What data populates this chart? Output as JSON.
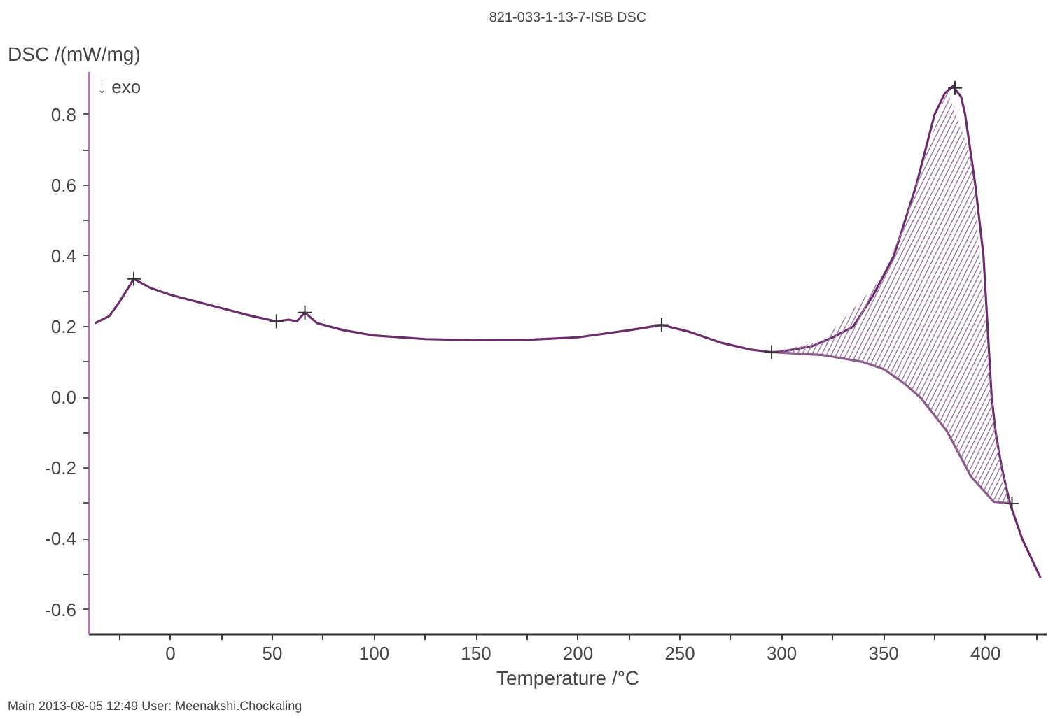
{
  "chart_data": {
    "type": "line",
    "title": "821-033-1-13-7-ISB DSC",
    "xlabel": "Temperature /°C",
    "ylabel": "DSC /(mW/mg)",
    "annotations": [
      "↓ exo",
      "Main   2013-08-05 12:49   User: Meenakshi.Chockaling"
    ],
    "xlim": [
      -40,
      430
    ],
    "ylim": [
      -0.67,
      0.92
    ],
    "xticks": [
      {
        "value": -25,
        "label": null
      },
      0,
      {
        "value": 25,
        "label": null
      },
      50,
      {
        "value": 75,
        "label": null
      },
      100,
      {
        "value": 125,
        "label": null
      },
      150,
      {
        "value": 175,
        "label": null
      },
      200,
      {
        "value": 225,
        "label": null
      },
      250,
      {
        "value": 275,
        "label": null
      },
      300,
      {
        "value": 325,
        "label": null
      },
      350,
      {
        "value": 375,
        "label": null
      },
      400,
      {
        "value": 425,
        "label": null
      }
    ],
    "yticks": [
      {
        "value": -0.6,
        "label": "-0.6"
      },
      {
        "value": -0.5,
        "label": null
      },
      {
        "value": -0.4,
        "label": "-0.4"
      },
      {
        "value": -0.3,
        "label": null
      },
      {
        "value": -0.2,
        "label": "-0.2"
      },
      {
        "value": -0.1,
        "label": null
      },
      {
        "value": 0,
        "label": "0.0"
      },
      {
        "value": 0.1,
        "label": null
      },
      {
        "value": 0.2,
        "label": "0.2"
      },
      {
        "value": 0.3,
        "label": null
      },
      {
        "value": 0.4,
        "label": "0.4"
      },
      {
        "value": 0.5,
        "label": null
      },
      {
        "value": 0.6,
        "label": "0.6"
      },
      {
        "value": 0.7,
        "label": null
      },
      {
        "value": 0.8,
        "label": "0.8"
      }
    ],
    "grid": false,
    "line_style": "solid",
    "series": [
      {
        "color": "#6b2c6b",
        "x": [
          -37,
          -30,
          -25,
          -18,
          -10,
          0,
          20,
          40,
          52,
          58,
          62,
          66,
          72,
          85,
          100,
          125,
          150,
          175,
          200,
          225,
          241,
          255,
          270,
          285,
          295,
          300,
          315,
          325,
          335,
          345,
          355,
          366,
          375,
          380,
          384,
          388,
          390,
          395,
          399,
          401,
          403,
          405,
          408,
          412,
          418,
          427
        ],
        "values": [
          0.21,
          0.23,
          0.27,
          0.335,
          0.31,
          0.29,
          0.26,
          0.23,
          0.215,
          0.22,
          0.215,
          0.24,
          0.21,
          0.19,
          0.175,
          0.165,
          0.162,
          0.163,
          0.17,
          0.19,
          0.205,
          0.185,
          0.155,
          0.135,
          0.128,
          0.13,
          0.145,
          0.17,
          0.2,
          0.29,
          0.4,
          0.6,
          0.8,
          0.86,
          0.88,
          0.85,
          0.8,
          0.6,
          0.4,
          0.2,
          0.0,
          -0.1,
          -0.2,
          -0.3,
          -0.4,
          -0.51
        ]
      },
      {
        "type": "line",
        "color": "#8a5a8a",
        "x": [
          295,
          320,
          340,
          350,
          360,
          368,
          381,
          393,
          404,
          412
        ],
        "values": [
          0.128,
          0.12,
          0.1,
          0.08,
          0.04,
          0.0,
          -0.095,
          -0.225,
          -0.295,
          -0.3
        ],
        "lower": [
          0.128,
          0.12,
          0.1,
          0.08,
          0.04,
          0.0,
          -0.095,
          -0.225,
          -0.295,
          -0.3
        ],
        "upper": [
          0.128,
          0.16,
          0.28,
          0.345,
          0.49,
          0.64,
          0.87,
          0.68,
          -0.05,
          -0.3
        ]
      },
      {
        "type": "scatter",
        "marker": "cross",
        "color": "#333333",
        "x": [
          -18,
          52,
          66,
          241,
          295,
          385,
          413
        ],
        "values": [
          0.335,
          0.215,
          0.24,
          0.205,
          0.128,
          0.875,
          -0.3
        ]
      }
    ]
  }
}
